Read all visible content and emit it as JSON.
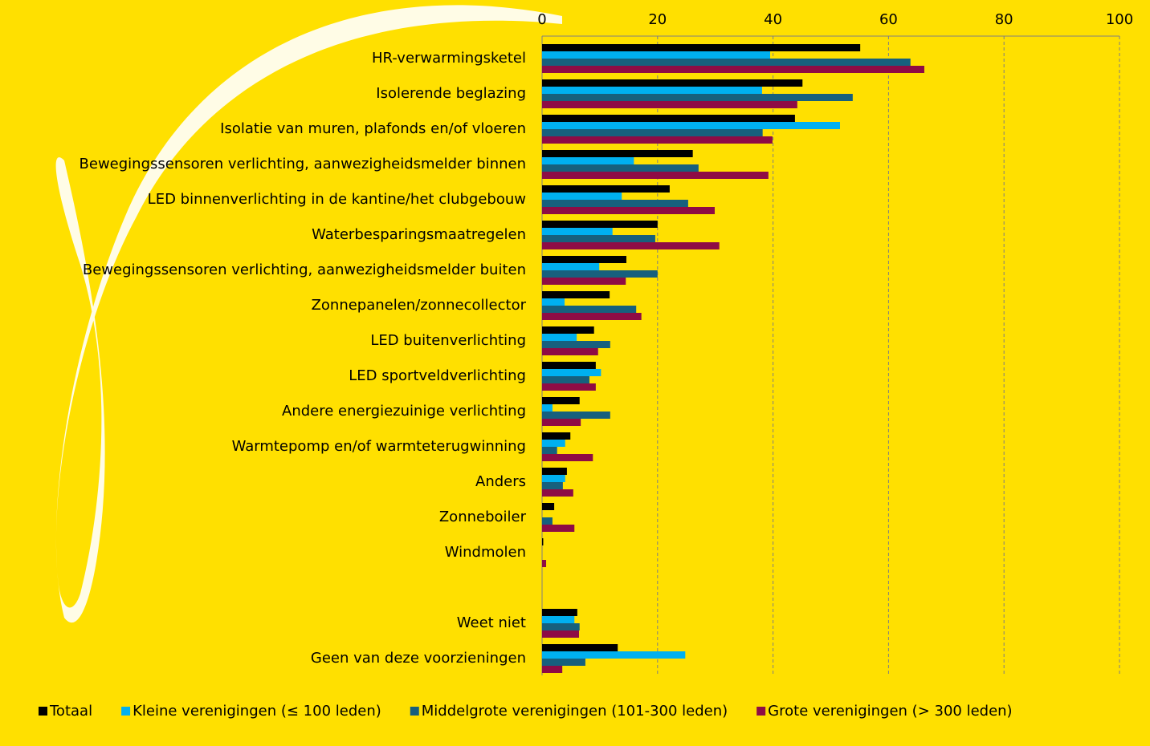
{
  "chart_data": {
    "type": "bar",
    "orientation": "horizontal",
    "categories": [
      "HR-verwarmingsketel",
      "Isolerende beglazing",
      "Isolatie van muren, plafonds en/of vloeren",
      "Bewegingssensoren verlichting, aanwezigheidsmelder binnen",
      "LED binnenverlichting in de kantine/het clubgebouw",
      "Waterbesparingsmaatregelen",
      "Bewegingssensoren verlichting, aanwezigheidsmelder buiten",
      "Zonnepanelen/zonnecollector",
      "LED buitenverlichting",
      "LED sportveldverlichting",
      "Andere energiezuinige verlichting",
      "Warmtepomp en/of warmteterugwinning",
      "Anders",
      "Zonneboiler",
      "Windmolen",
      null,
      "Weet niet",
      "Geen van deze voorzieningen"
    ],
    "series": [
      {
        "name": "Totaal",
        "color": "#000000",
        "values": [
          55.1,
          45.1,
          43.8,
          26.1,
          22.1,
          20.0,
          14.6,
          11.7,
          9.0,
          9.3,
          6.5,
          4.9,
          4.3,
          2.1,
          0.2,
          null,
          6.1,
          13.1
        ]
      },
      {
        "name": "Kleine verenigingen (≤ 100 leden)",
        "color": "#00b0f0",
        "values": [
          39.5,
          38.1,
          51.6,
          15.9,
          13.8,
          12.2,
          9.9,
          3.9,
          6.0,
          10.2,
          1.8,
          4.0,
          4.0,
          0,
          0,
          null,
          5.6,
          24.8
        ]
      },
      {
        "name": "Middelgrote verenigingen (101-300 leden)",
        "color": "#17607d",
        "values": [
          63.8,
          53.8,
          38.2,
          27.1,
          25.3,
          19.6,
          20.0,
          16.3,
          11.8,
          8.2,
          11.8,
          2.6,
          3.6,
          1.8,
          0,
          null,
          6.5,
          7.5
        ]
      },
      {
        "name": "Grote verenigingen (> 300 leden)",
        "color": "#8e0c45",
        "values": [
          66.2,
          44.2,
          39.9,
          39.2,
          29.9,
          30.7,
          14.5,
          17.2,
          9.7,
          9.3,
          6.7,
          8.8,
          5.4,
          5.6,
          0.7,
          null,
          6.4,
          3.5
        ]
      }
    ],
    "xlim": [
      0,
      100
    ],
    "xticks": [
      0,
      20,
      40,
      60,
      80,
      100
    ],
    "grid": true,
    "legend": "bottom"
  }
}
